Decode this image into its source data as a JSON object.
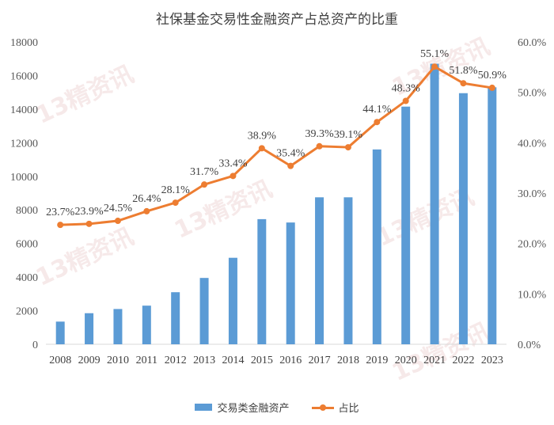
{
  "watermark": "13精资讯",
  "chart_data": {
    "type": "bar+line",
    "title": "社保基金交易性金融资产占总资产的比重",
    "categories": [
      "2008",
      "2009",
      "2010",
      "2011",
      "2012",
      "2013",
      "2014",
      "2015",
      "2016",
      "2017",
      "2018",
      "2019",
      "2020",
      "2021",
      "2022",
      "2023"
    ],
    "series": [
      {
        "name": "交易类金融资产",
        "type": "bar",
        "axis": "left",
        "color": "#5B9BD5",
        "values": [
          1350,
          1850,
          2100,
          2300,
          3100,
          3950,
          5150,
          7450,
          7250,
          8750,
          8750,
          11600,
          14150,
          16700,
          14950,
          15300
        ]
      },
      {
        "name": "占比",
        "type": "line",
        "axis": "right",
        "color": "#ED7D31",
        "values": [
          23.7,
          23.9,
          24.5,
          26.4,
          28.1,
          31.7,
          33.4,
          38.9,
          35.4,
          39.3,
          39.1,
          44.1,
          48.3,
          55.1,
          51.8,
          50.9
        ],
        "labels": [
          "23.7%",
          "23.9%",
          "24.5%",
          "26.4%",
          "28.1%",
          "31.7%",
          "33.4%",
          "38.9%",
          "35.4%",
          "39.3%",
          "39.1%",
          "44.1%",
          "48.3%",
          "55.1%",
          "51.8%",
          "50.9%"
        ]
      }
    ],
    "y_left": {
      "min": 0,
      "max": 18000,
      "ticks": [
        "0",
        "2000",
        "4000",
        "6000",
        "8000",
        "10000",
        "12000",
        "14000",
        "16000",
        "18000"
      ]
    },
    "y_right": {
      "min": 0,
      "max": 60,
      "ticks": [
        "0.0%",
        "10.0%",
        "20.0%",
        "30.0%",
        "40.0%",
        "50.0%",
        "60.0%"
      ]
    },
    "grid": false,
    "legend_position": "bottom"
  }
}
